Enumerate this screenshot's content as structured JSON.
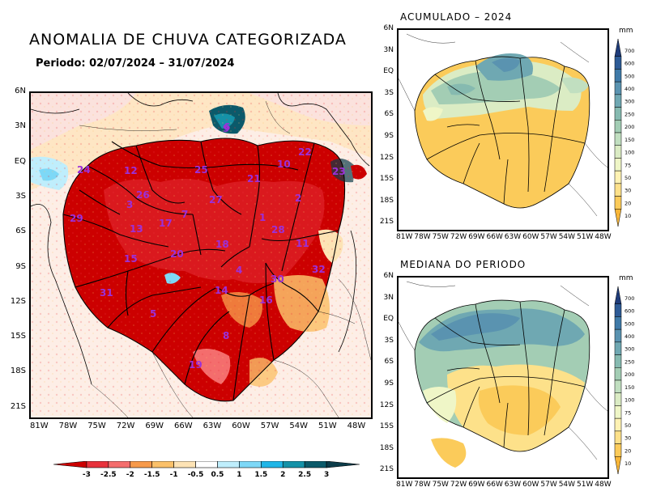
{
  "main": {
    "title": "ANOMALIA DE CHUVA CATEGORIZADA",
    "subtitle": "Periodo: 02/07/2024 – 31/07/2024",
    "y_ticks": [
      "6N",
      "3N",
      "EQ",
      "3S",
      "6S",
      "9S",
      "12S",
      "15S",
      "18S",
      "21S"
    ],
    "x_ticks": [
      "81W",
      "78W",
      "75W",
      "72W",
      "69W",
      "66W",
      "63W",
      "60W",
      "57W",
      "54W",
      "51W",
      "48W"
    ],
    "basin_labels": [
      "24",
      "12",
      "25",
      "21",
      "22",
      "9",
      "10",
      "26",
      "3",
      "7",
      "27",
      "2",
      "13",
      "17",
      "1",
      "29",
      "28",
      "18",
      "15",
      "20",
      "4",
      "11",
      "32",
      "30",
      "31",
      "14",
      "6",
      "16",
      "5",
      "8",
      "19",
      "23"
    ],
    "colorbar": {
      "labels": [
        "-3",
        "-2.5",
        "-2",
        "-1.5",
        "-1",
        "-0.5",
        "0.5",
        "1",
        "1.5",
        "2",
        "2.5",
        "3"
      ],
      "colors": [
        "#cc0000",
        "#e8323c",
        "#f46d6d",
        "#f79a4a",
        "#fbc16a",
        "#fde3b5",
        "#ffffff",
        "#bfeefc",
        "#7dd8f7",
        "#20b6e7",
        "#1592a8",
        "#0b5a6a",
        "#0c3c4a"
      ]
    }
  },
  "accumulated": {
    "title": "ACUMULADO – 2024",
    "unit": "mm",
    "y_ticks": [
      "6N",
      "3N",
      "EQ",
      "3S",
      "6S",
      "9S",
      "12S",
      "15S",
      "18S",
      "21S"
    ],
    "x_ticks": [
      "81W",
      "78W",
      "75W",
      "72W",
      "69W",
      "66W",
      "63W",
      "60W",
      "57W",
      "54W",
      "51W",
      "48W"
    ]
  },
  "median": {
    "title": "MEDIANA DO PERIODO",
    "unit": "mm",
    "y_ticks": [
      "6N",
      "3N",
      "EQ",
      "3S",
      "6S",
      "9S",
      "12S",
      "15S",
      "18S",
      "21S"
    ],
    "x_ticks": [
      "81W",
      "78W",
      "75W",
      "72W",
      "69W",
      "66W",
      "63W",
      "60W",
      "57W",
      "54W",
      "51W",
      "48W"
    ]
  },
  "small_colorbar": {
    "labels": [
      "700",
      "600",
      "500",
      "400",
      "300",
      "250",
      "200",
      "150",
      "100",
      "75",
      "50",
      "30",
      "20",
      "10"
    ],
    "colors": [
      "#1f3c7a",
      "#2d5b96",
      "#3f7aa8",
      "#5a93b0",
      "#6fa8b2",
      "#86bab0",
      "#a3cdb4",
      "#c1dfc0",
      "#dbecc4",
      "#eff6c7",
      "#fff2b3",
      "#fde18a",
      "#fbcb5a",
      "#f8b638"
    ]
  }
}
